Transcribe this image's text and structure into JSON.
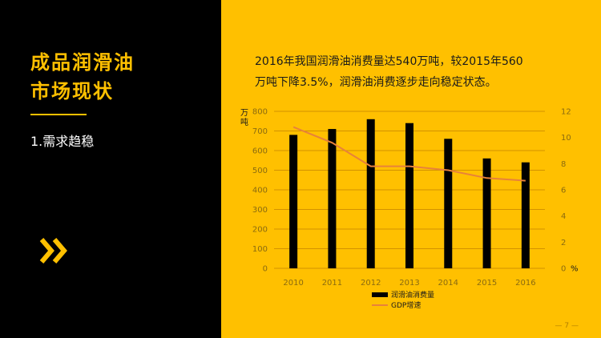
{
  "slide": {
    "title_line1": "成品润滑油",
    "title_line2": "市场现状",
    "subtitle": "1.需求趋稳",
    "description_line1": "2016年我国润滑油消费量达540万吨，较2015年560",
    "description_line2": "万吨下降3.5%，润滑油消费逐步走向稳定状态。",
    "page_number": "— 7 —",
    "chevron_icon": "double-chevron-right-icon",
    "colors": {
      "background": "#ffc000",
      "left_panel": "#000000",
      "accent": "#ffc000",
      "bar": "#000000",
      "line": "#e8823a"
    }
  },
  "chart_data": {
    "type": "bar",
    "categories": [
      "2010",
      "2011",
      "2012",
      "2013",
      "2014",
      "2015",
      "2016"
    ],
    "series": [
      {
        "name": "润滑油消费量",
        "type": "bar",
        "axis": "left",
        "values": [
          680,
          710,
          760,
          740,
          660,
          560,
          540
        ]
      },
      {
        "name": "GDP增速",
        "type": "line",
        "axis": "right",
        "values": [
          10.8,
          9.6,
          7.8,
          7.8,
          7.5,
          6.9,
          6.7
        ]
      }
    ],
    "ylabel": "万吨",
    "ylim": [
      0,
      800
    ],
    "yticks": [
      "0",
      "100",
      "200",
      "300",
      "400",
      "500",
      "600",
      "700",
      "800"
    ],
    "y2label": "%",
    "y2lim": [
      0,
      12
    ],
    "y2ticks": [
      "0",
      "2",
      "4",
      "6",
      "8",
      "10",
      "12"
    ],
    "grid": true,
    "legend": "bottom"
  }
}
